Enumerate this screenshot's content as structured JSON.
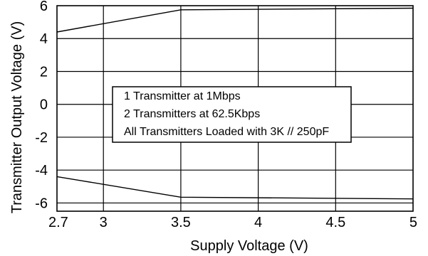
{
  "chart_data": {
    "type": "line",
    "title": "",
    "xlabel": "Supply Voltage (V)",
    "ylabel": "Transmitter Output Voltage (V)",
    "xlim": [
      2.7,
      5
    ],
    "ylim": [
      -6.5,
      6
    ],
    "x_ticks": [
      2.7,
      3,
      3.5,
      4,
      4.5,
      5
    ],
    "x_tick_labels": [
      "2.7",
      "3",
      "3.5",
      "4",
      "4.5",
      "5"
    ],
    "y_ticks": [
      6,
      4,
      2,
      0,
      -2,
      -4,
      -6
    ],
    "y_tick_labels": [
      "6",
      "4",
      "2",
      "0",
      "-2",
      "-4",
      "-6"
    ],
    "grid": true,
    "series": [
      {
        "x": [
          2.7,
          3.5,
          5
        ],
        "y": [
          4.4,
          5.75,
          5.85
        ]
      },
      {
        "x": [
          2.7,
          3.5,
          5
        ],
        "y": [
          -4.4,
          -5.65,
          -5.75
        ]
      }
    ],
    "annotation": {
      "lines": [
        "1 Transmitter at 1Mbps",
        "2 Transmitters at 62.5Kbps",
        "All Transmitters Loaded with 3K // 250pF"
      ]
    },
    "colors": {
      "line": "#000000",
      "grid": "#000000",
      "background": "#ffffff"
    }
  }
}
